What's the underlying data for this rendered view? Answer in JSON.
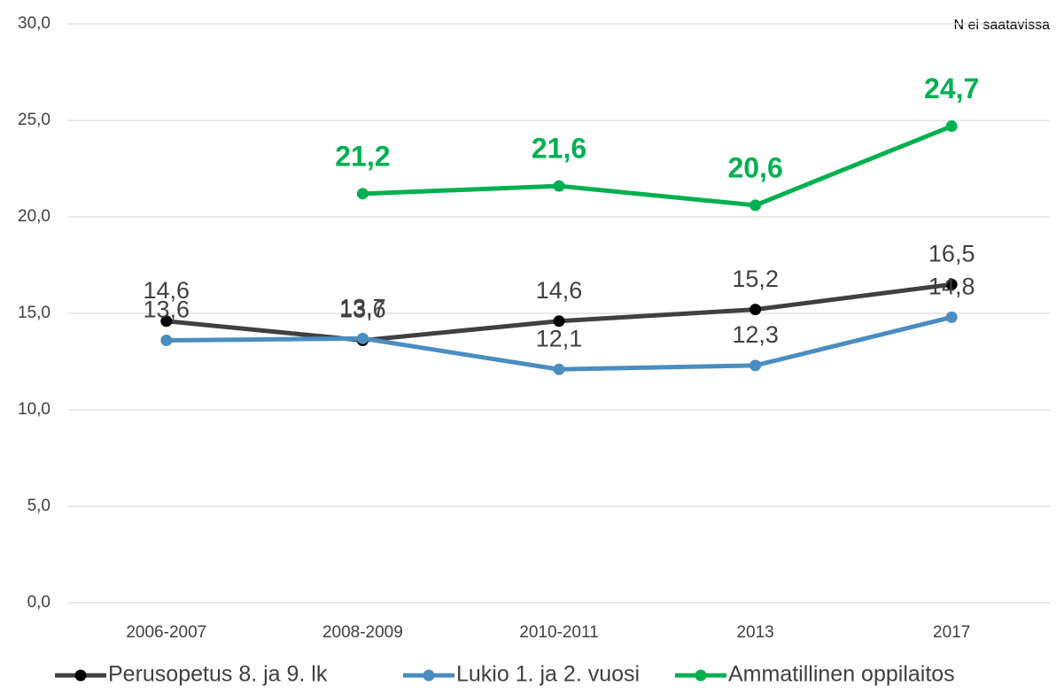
{
  "chart_data": {
    "type": "line",
    "annotation": "N ei saatavissa",
    "categories": [
      "2006-2007",
      "2008-2009",
      "2010-2011",
      "2013",
      "2017"
    ],
    "series": [
      {
        "name": "Perusopetus 8. ja 9. lk",
        "color": "#404040",
        "values": [
          14.6,
          13.6,
          14.6,
          15.2,
          16.5
        ],
        "value_labels": [
          "14,6",
          "13,6",
          "14,6",
          "15,2",
          "16,5"
        ]
      },
      {
        "name": "Lukio 1. ja 2. vuosi",
        "color": "#4a8dc0",
        "values": [
          13.6,
          13.7,
          12.1,
          12.3,
          14.8
        ],
        "value_labels": [
          "13,6",
          "13,7",
          "12,1",
          "12,3",
          "14,8"
        ]
      },
      {
        "name": "Ammatillinen oppilaitos",
        "color": "#00b050",
        "values": [
          null,
          21.2,
          21.6,
          20.6,
          24.7
        ],
        "value_labels": [
          null,
          "21,2",
          "21,6",
          "20,6",
          "24,7"
        ]
      }
    ],
    "ylim": [
      0,
      30
    ],
    "yticks": [
      {
        "value": 0,
        "label": "0,0"
      },
      {
        "value": 5,
        "label": "5,0"
      },
      {
        "value": 10,
        "label": "10,0"
      },
      {
        "value": 15,
        "label": "15,0"
      },
      {
        "value": 20,
        "label": "20,0"
      },
      {
        "value": 25,
        "label": "25,0"
      },
      {
        "value": 30,
        "label": "30,0"
      }
    ],
    "grid": true,
    "legend": "bottom"
  }
}
